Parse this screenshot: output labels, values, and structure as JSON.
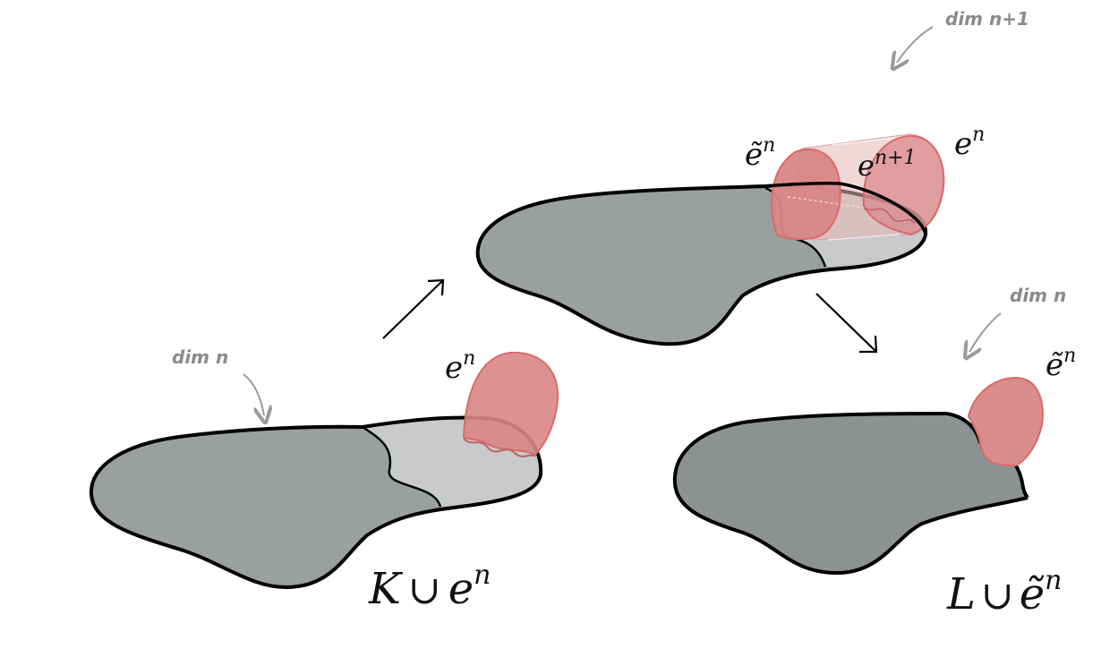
{
  "colors": {
    "blob_dark": "#9aa09f",
    "blob_light": "#c8cacc",
    "blob_right": "#8c9192",
    "cell_fill": "#d98686",
    "cell_stroke": "#d96a6a",
    "outline": "#000000",
    "note": "#8a8a8a"
  },
  "left": {
    "annotation": "dim n",
    "cell_label": {
      "base": "e",
      "sup": "n"
    },
    "caption": {
      "a": "K",
      "op": "∪",
      "b": "e",
      "sup": "n"
    }
  },
  "middle": {
    "annotation": "dim n+1",
    "cell_left_label": {
      "base": "ẽ",
      "sup": "n"
    },
    "cell_mid_label": {
      "base": "e",
      "sup": "n+1"
    },
    "cell_right_label": {
      "base": "e",
      "sup": "n"
    }
  },
  "right": {
    "annotation": "dim n",
    "cell_label": {
      "base": "ẽ",
      "sup": "n"
    },
    "caption": {
      "a": "L",
      "op": "∪",
      "b": "ẽ",
      "sup": "n"
    }
  },
  "arrows": {
    "left_to_middle": "↗",
    "middle_to_right": "↘"
  }
}
